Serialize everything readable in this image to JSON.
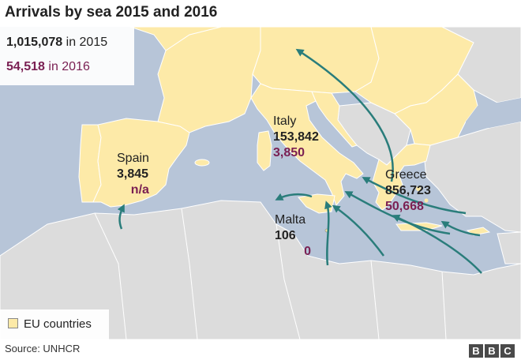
{
  "title": "Arrivals by sea 2015 and 2016",
  "totals": {
    "y2015_value": "1,015,078",
    "y2015_text": " in 2015",
    "y2016_value": "54,518",
    "y2016_text": " in 2016"
  },
  "countries": {
    "spain": {
      "name": "Spain",
      "y2015": "3,845",
      "y2016": "n/a"
    },
    "italy": {
      "name": "Italy",
      "y2015": "153,842",
      "y2016": "3,850"
    },
    "malta": {
      "name": "Malta",
      "y2015": "106",
      "y2016": "0"
    },
    "greece": {
      "name": "Greece",
      "y2015": "856,723",
      "y2016": "50,668"
    }
  },
  "legend": {
    "label": "EU countries"
  },
  "source": "Source: UNHCR",
  "logo": [
    "B",
    "B",
    "C"
  ],
  "colors": {
    "sea": "#b7c5d8",
    "eu_land": "#fdeaa8",
    "non_eu_land": "#dcdcdc",
    "arrow": "#2a7d7b",
    "value_2016": "#7a1f52"
  }
}
